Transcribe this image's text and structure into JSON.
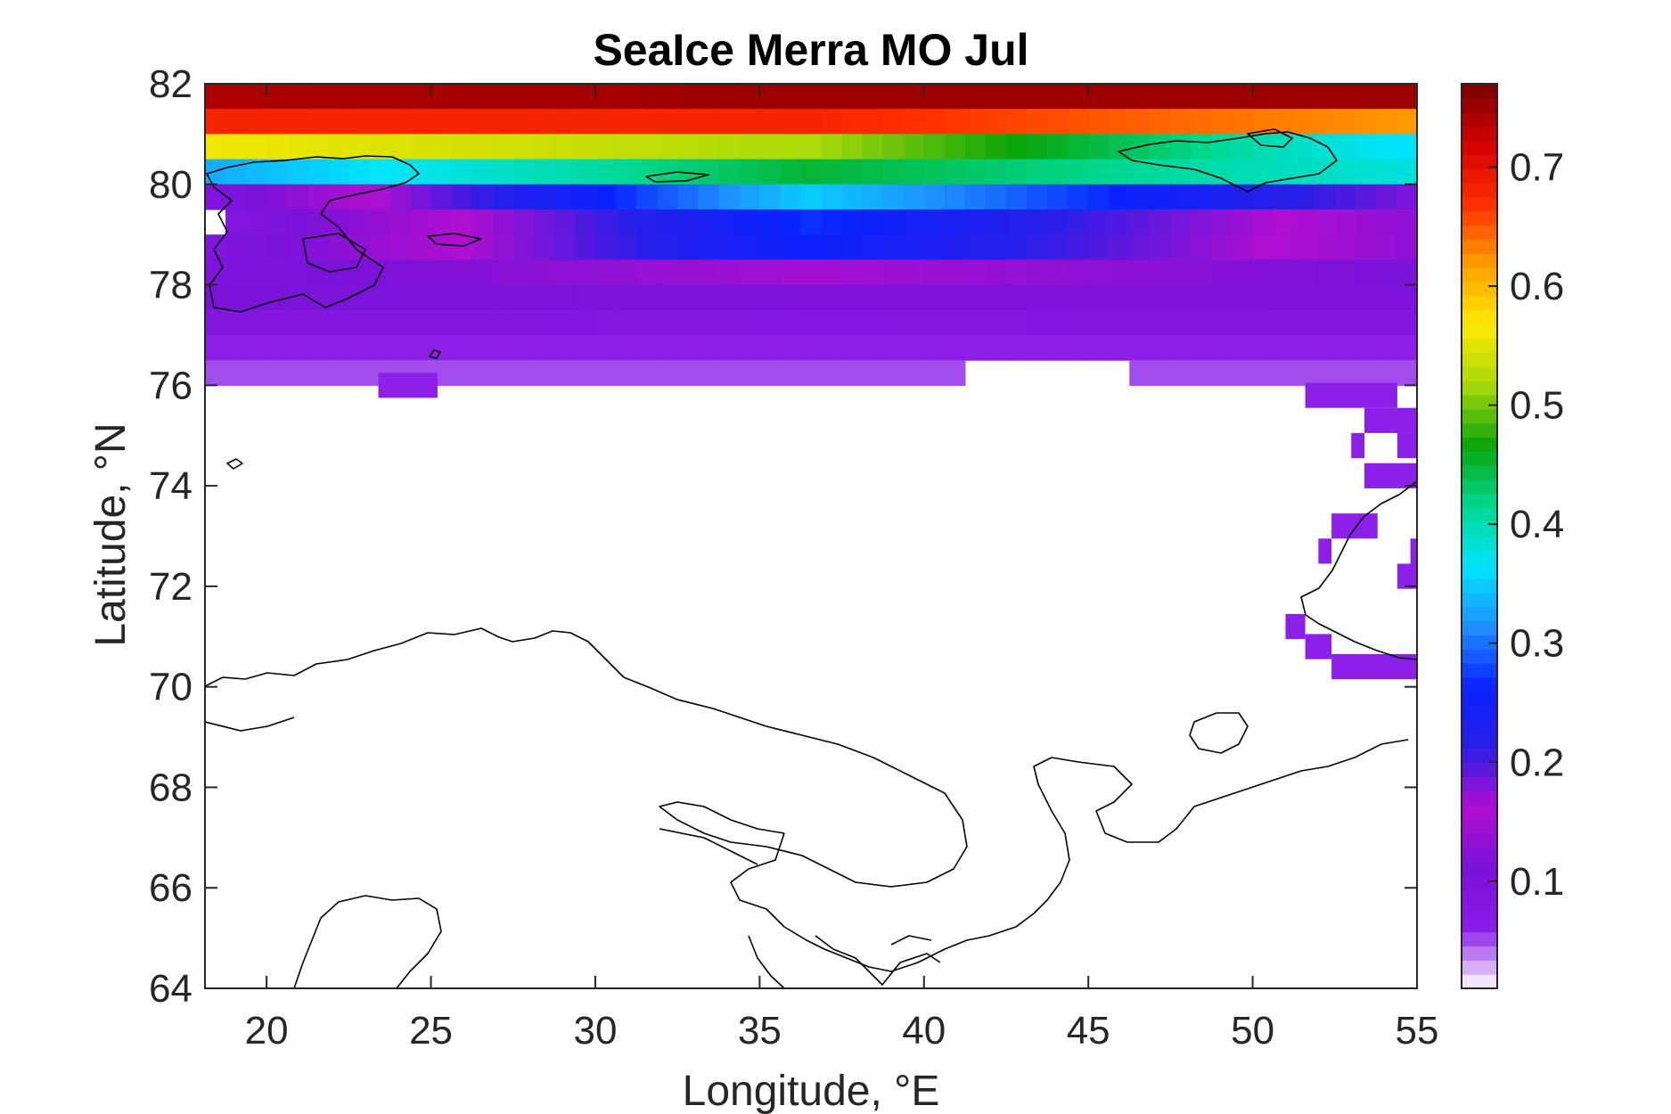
{
  "chart_data": {
    "type": "heatmap",
    "title": "SeaIce Merra MO Jul",
    "xlabel": "Longitude, °E",
    "ylabel": "Latitude, °N",
    "xlim": [
      18.125,
      55
    ],
    "ylim": [
      64,
      82
    ],
    "xticks": [
      20,
      25,
      30,
      35,
      40,
      45,
      50,
      55
    ],
    "yticks": [
      64,
      66,
      68,
      70,
      72,
      74,
      76,
      78,
      80,
      82
    ],
    "colorbar": {
      "range": [
        0.01,
        0.77
      ],
      "ticks": [
        0.1,
        0.2,
        0.3,
        0.4,
        0.5,
        0.6,
        0.7
      ],
      "colormap": "rainbow",
      "stops": [
        "#ffffff",
        "#8a1ce8",
        "#7a12d8",
        "#b00fd0",
        "#2a1ee8",
        "#0a22ff",
        "#1f8fff",
        "#00e5ff",
        "#00d890",
        "#0aa50a",
        "#a6d80a",
        "#ffea00",
        "#ffa000",
        "#ff3000",
        "#d40000",
        "#7a0000"
      ]
    },
    "grid_lon_step": 0.625,
    "grid_lat_step": 0.5,
    "latitude_profile_description_values": [
      {
        "lat": 81.75,
        "values": [
          0.74,
          0.75,
          0.75
        ]
      },
      {
        "lat": 81.25,
        "values": [
          0.68,
          0.68,
          0.62
        ]
      },
      {
        "lat": 80.75,
        "values": [
          0.56,
          0.52,
          0.36
        ]
      },
      {
        "lat": 80.25,
        "values": [
          0.33,
          0.45,
          0.38
        ]
      },
      {
        "lat": 79.75,
        "values": [
          0.09,
          0.35,
          0.18
        ]
      },
      {
        "lat": 79.25,
        "values": [
          0.08,
          0.27,
          0.13
        ]
      },
      {
        "lat": 78.75,
        "values": [
          0.09,
          0.26,
          0.13
        ]
      },
      {
        "lat": 78.25,
        "values": [
          0.1,
          0.15,
          0.11
        ]
      },
      {
        "lat": 77.75,
        "values": [
          0.11,
          0.1,
          0.1
        ]
      },
      {
        "lat": 77.25,
        "values": [
          0.09,
          0.08,
          0.09
        ]
      },
      {
        "lat": 76.75,
        "values": [
          0.06,
          0.06,
          0.06
        ]
      },
      {
        "lat": 76.25,
        "values": [
          0.05,
          0.05,
          0.05
        ]
      }
    ]
  }
}
